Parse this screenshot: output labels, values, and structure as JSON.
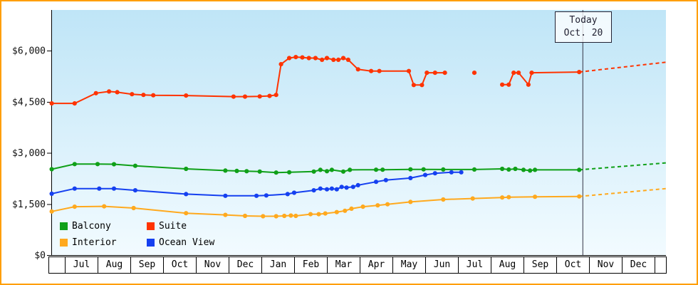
{
  "chart_data": {
    "type": "line",
    "x_unit": "month-index, 0 = first Jul tick",
    "categories": [
      "Jul",
      "Aug",
      "Sep",
      "Oct",
      "Nov",
      "Dec",
      "Jan",
      "Feb",
      "Mar",
      "Apr",
      "May",
      "Jun",
      "Jul",
      "Aug",
      "Sep",
      "Oct",
      "Nov",
      "Dec"
    ],
    "yticks": [
      {
        "value": 0,
        "label": "$0"
      },
      {
        "value": 1500,
        "label": "$1,500"
      },
      {
        "value": 3000,
        "label": "$3,000"
      },
      {
        "value": 4500,
        "label": "$4,500"
      },
      {
        "value": 6000,
        "label": "$6,000"
      }
    ],
    "ylim": [
      0,
      6600
    ],
    "grid": false,
    "legend_position": "bottom-left-inside",
    "today": {
      "x": 15.3,
      "line1": "Today",
      "line2": "Oct. 20"
    },
    "legend": [
      {
        "label": "Balcony",
        "color": "#0fa018"
      },
      {
        "label": "Suite",
        "color": "#ff3300"
      },
      {
        "label": "Interior",
        "color": "#ffa91e"
      },
      {
        "label": "Ocean View",
        "color": "#1540f0"
      }
    ],
    "colors": {
      "plot_bg_top": "#bfe5f7",
      "plot_bg_bottom": "#f2fbff",
      "frame_border": "#ff9e00",
      "axis": "#000000",
      "today_line": "#333344"
    },
    "series": [
      {
        "name": "Interior",
        "color": "#ffa91e",
        "segments": [
          [
            [
              -0.9,
              1280
            ],
            [
              -0.2,
              1420
            ],
            [
              0.7,
              1430
            ],
            [
              1.6,
              1380
            ],
            [
              3.2,
              1230
            ],
            [
              4.4,
              1180
            ],
            [
              5.0,
              1150
            ],
            [
              5.55,
              1140
            ],
            [
              5.95,
              1140
            ],
            [
              6.2,
              1150
            ],
            [
              6.4,
              1160
            ],
            [
              6.55,
              1150
            ],
            [
              7.0,
              1200
            ],
            [
              7.25,
              1200
            ],
            [
              7.45,
              1220
            ],
            [
              7.8,
              1260
            ],
            [
              8.05,
              1300
            ],
            [
              8.25,
              1360
            ],
            [
              8.6,
              1420
            ],
            [
              9.05,
              1460
            ],
            [
              9.35,
              1490
            ],
            [
              10.05,
              1560
            ],
            [
              11.05,
              1630
            ],
            [
              11.95,
              1660
            ],
            [
              12.85,
              1690
            ],
            [
              13.05,
              1700
            ],
            [
              13.85,
              1710
            ],
            [
              15.2,
              1720
            ]
          ]
        ],
        "dashed": [
          [
            15.2,
            1720
          ],
          [
            17.85,
            1950
          ]
        ]
      },
      {
        "name": "Ocean View",
        "color": "#1540f0",
        "segments": [
          [
            [
              -0.9,
              1800
            ],
            [
              -0.2,
              1950
            ],
            [
              0.55,
              1950
            ],
            [
              1.0,
              1950
            ],
            [
              1.65,
              1900
            ],
            [
              3.2,
              1790
            ],
            [
              4.4,
              1740
            ],
            [
              5.35,
              1740
            ],
            [
              5.65,
              1750
            ],
            [
              6.3,
              1790
            ],
            [
              6.5,
              1830
            ],
            [
              7.1,
              1900
            ],
            [
              7.3,
              1950
            ],
            [
              7.5,
              1930
            ],
            [
              7.65,
              1950
            ],
            [
              7.8,
              1930
            ],
            [
              7.95,
              2000
            ],
            [
              8.1,
              1980
            ],
            [
              8.3,
              2000
            ],
            [
              8.45,
              2050
            ],
            [
              9.0,
              2150
            ],
            [
              9.3,
              2200
            ],
            [
              10.05,
              2260
            ],
            [
              10.5,
              2350
            ],
            [
              10.8,
              2400
            ],
            [
              11.3,
              2430
            ],
            [
              11.6,
              2430
            ]
          ]
        ],
        "dashed": []
      },
      {
        "name": "Balcony",
        "color": "#0fa018",
        "segments": [
          [
            [
              -0.9,
              2520
            ],
            [
              -0.2,
              2670
            ],
            [
              0.5,
              2670
            ],
            [
              1.0,
              2665
            ],
            [
              1.65,
              2620
            ],
            [
              3.2,
              2530
            ],
            [
              4.4,
              2480
            ],
            [
              4.75,
              2470
            ],
            [
              5.05,
              2460
            ],
            [
              5.45,
              2450
            ],
            [
              5.95,
              2420
            ],
            [
              6.35,
              2430
            ],
            [
              7.1,
              2450
            ],
            [
              7.3,
              2500
            ],
            [
              7.5,
              2460
            ],
            [
              7.65,
              2500
            ],
            [
              8.0,
              2450
            ],
            [
              8.2,
              2500
            ],
            [
              9.0,
              2505
            ],
            [
              9.2,
              2505
            ],
            [
              10.05,
              2515
            ],
            [
              10.45,
              2515
            ],
            [
              11.05,
              2510
            ],
            [
              12.0,
              2510
            ],
            [
              12.85,
              2530
            ],
            [
              13.05,
              2510
            ],
            [
              13.25,
              2530
            ],
            [
              13.5,
              2500
            ],
            [
              13.7,
              2480
            ],
            [
              13.85,
              2500
            ],
            [
              15.2,
              2500
            ]
          ]
        ],
        "dashed": [
          [
            15.2,
            2500
          ],
          [
            17.85,
            2705
          ]
        ]
      },
      {
        "name": "Suite",
        "color": "#ff3300",
        "segments": [
          [
            [
              -0.9,
              4450
            ],
            [
              -0.2,
              4450
            ],
            [
              0.45,
              4750
            ],
            [
              0.85,
              4800
            ],
            [
              1.1,
              4780
            ],
            [
              1.55,
              4720
            ],
            [
              1.9,
              4700
            ],
            [
              2.2,
              4690
            ],
            [
              3.2,
              4680
            ],
            [
              4.65,
              4650
            ],
            [
              5.0,
              4650
            ],
            [
              5.45,
              4655
            ],
            [
              5.75,
              4670
            ],
            [
              5.95,
              4700
            ],
            [
              6.1,
              5600
            ],
            [
              6.35,
              5780
            ],
            [
              6.55,
              5810
            ],
            [
              6.75,
              5800
            ],
            [
              6.95,
              5780
            ],
            [
              7.15,
              5780
            ],
            [
              7.35,
              5730
            ],
            [
              7.5,
              5780
            ],
            [
              7.7,
              5730
            ],
            [
              7.85,
              5730
            ],
            [
              8.0,
              5780
            ],
            [
              8.15,
              5730
            ],
            [
              8.45,
              5450
            ],
            [
              8.85,
              5400
            ],
            [
              9.1,
              5400
            ],
            [
              10.0,
              5400
            ],
            [
              10.15,
              4990
            ],
            [
              10.4,
              4990
            ],
            [
              10.55,
              5350
            ],
            [
              10.8,
              5350
            ],
            [
              11.1,
              5350
            ]
          ],
          [
            [
              12.0,
              5350
            ]
          ],
          [
            [
              12.85,
              5000
            ],
            [
              13.05,
              5000
            ],
            [
              13.2,
              5350
            ],
            [
              13.35,
              5350
            ],
            [
              13.65,
              5000
            ],
            [
              13.75,
              5350
            ],
            [
              15.2,
              5370
            ]
          ]
        ],
        "dashed": [
          [
            15.2,
            5370
          ],
          [
            17.85,
            5660
          ]
        ]
      }
    ]
  }
}
